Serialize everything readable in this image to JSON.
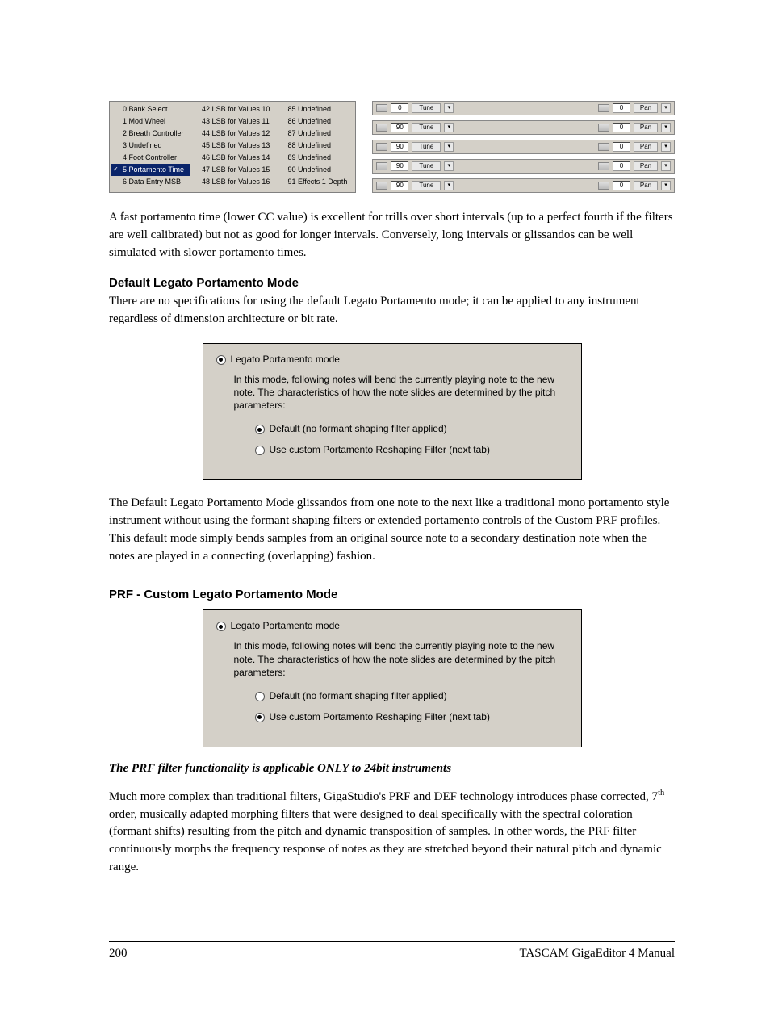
{
  "cc_list": {
    "cols": [
      [
        "0 Bank Select",
        "1 Mod Wheel",
        "2 Breath Controller",
        "3 Undefined",
        "4 Foot Controller",
        "5 Portamento Time",
        "6 Data Entry MSB"
      ],
      [
        "42 LSB for Values 10",
        "43 LSB for Values 11",
        "44 LSB for Values 12",
        "45 LSB for Values 13",
        "46 LSB for Values 14",
        "47 LSB for Values 15",
        "48 LSB for Values 16"
      ],
      [
        "85 Undefined",
        "86 Undefined",
        "87 Undefined",
        "88 Undefined",
        "89 Undefined",
        "90 Undefined",
        "91 Effects 1 Depth"
      ]
    ],
    "selected": "5 Portamento Time"
  },
  "ctrl_rows": [
    {
      "num": "0",
      "tune": "Tune",
      "num2": "0",
      "pan": "Pan"
    },
    {
      "num": "90",
      "tune": "Tune",
      "num2": "0",
      "pan": "Pan"
    },
    {
      "num": "90",
      "tune": "Tune",
      "num2": "0",
      "pan": "Pan"
    },
    {
      "num": "90",
      "tune": "Tune",
      "num2": "0",
      "pan": "Pan"
    },
    {
      "num": "90",
      "tune": "Tune",
      "num2": "0",
      "pan": "Pan"
    }
  ],
  "para1": "A fast portamento time (lower CC value) is excellent for trills over short intervals (up to a perfect fourth if the filters are well calibrated) but not as good for longer intervals. Conversely, long intervals or glissandos can be well simulated with slower portamento times.",
  "h1": "Default Legato Portamento Mode",
  "para2": "There are no specifications for using the default Legato Portamento mode; it can be applied to any instrument regardless of dimension architecture or bit rate.",
  "ui_box": {
    "title": "Legato Portamento mode",
    "desc": "In this mode, following notes will bend the currently playing note to the new note. The characteristics of how the note slides are determined by the pitch parameters:",
    "opt1": "Default (no formant shaping filter applied)",
    "opt2": "Use custom Portamento Reshaping Filter (next tab)"
  },
  "para3": "The Default Legato Portamento Mode glissandos from one note to the next like a traditional mono portamento style instrument without using the formant shaping filters or extended portamento controls of the Custom PRF profiles. This default mode simply bends samples from an original source note to a secondary destination note when the notes are played in a connecting (overlapping) fashion.",
  "h2": "PRF - Custom Legato Portamento Mode",
  "italic": "The PRF filter functionality is applicable ONLY to 24bit instruments",
  "para4a": "Much more complex than traditional filters, GigaStudio's PRF and DEF technology introduces phase corrected, 7",
  "para4b": " order, musically adapted morphing filters that were designed to deal specifically with the spectral coloration (formant shifts) resulting from the pitch and dynamic transposition of samples. In other words, the PRF filter continuously morphs the frequency response of notes as they are stretched beyond their natural pitch and dynamic range.",
  "sup": "th",
  "footer": {
    "page": "200",
    "title": "TASCAM GigaEditor 4 Manual"
  },
  "arrow": "▾"
}
